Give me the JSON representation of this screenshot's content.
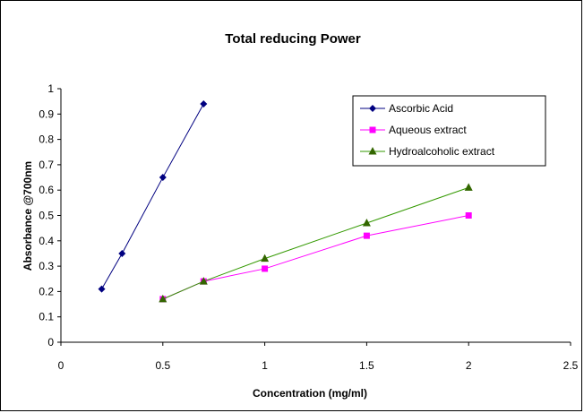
{
  "chart_data": {
    "type": "line",
    "title": "Total reducing Power",
    "xlabel": "Concentration (mg/ml)",
    "ylabel": "Absorbance @700nm",
    "xlim": [
      0,
      2.5
    ],
    "ylim": [
      0,
      1
    ],
    "x_ticks": [
      "0",
      "0.5",
      "1",
      "1.5",
      "2",
      "2.5"
    ],
    "y_ticks": [
      "0",
      "0.1",
      "0.2",
      "0.3",
      "0.4",
      "0.5",
      "0.6",
      "0.7",
      "0.8",
      "0.9",
      "1"
    ],
    "grid": false,
    "legend_position": "top-right",
    "series": [
      {
        "name": "Ascorbic Acid",
        "color": "#000080",
        "marker": "diamond",
        "x": [
          0.2,
          0.3,
          0.5,
          0.7
        ],
        "y": [
          0.21,
          0.35,
          0.65,
          0.94
        ]
      },
      {
        "name": "Aqueous extract",
        "color": "#FF00FF",
        "marker": "square",
        "x": [
          0.5,
          0.7,
          1.0,
          1.5,
          2.0
        ],
        "y": [
          0.17,
          0.24,
          0.29,
          0.42,
          0.5
        ]
      },
      {
        "name": "Hydroalcoholic extract",
        "color": "#336600",
        "line_color": "#339900",
        "marker": "triangle",
        "x": [
          0.5,
          0.7,
          1.0,
          1.5,
          2.0
        ],
        "y": [
          0.17,
          0.24,
          0.33,
          0.47,
          0.61
        ]
      }
    ]
  }
}
